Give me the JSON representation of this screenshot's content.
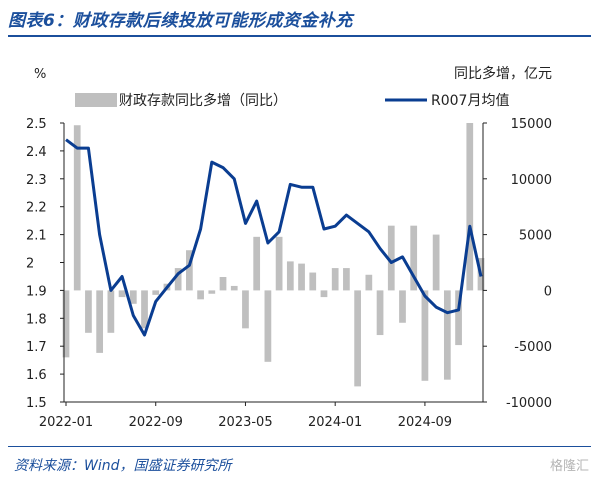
{
  "header": {
    "title": "图表6：财政存款后续投放可能形成资金补充"
  },
  "footer": {
    "source": "资料来源：Wind，国盛证券研究所",
    "watermark": "格隆汇"
  },
  "chart_data": {
    "type": "bar+line",
    "left_axis_unit": "%",
    "right_axis_unit": "同比多增，亿元",
    "left_ylim": [
      1.5,
      2.5
    ],
    "right_ylim": [
      -10000,
      15000
    ],
    "left_ticks": [
      "2.5",
      "2.4",
      "2.3",
      "2.2",
      "2.1",
      "2",
      "1.9",
      "1.8",
      "1.7",
      "1.6",
      "1.5"
    ],
    "right_ticks": [
      "15000",
      "10000",
      "5000",
      "0",
      "-5000",
      "-10000"
    ],
    "x_ticks": [
      "2022-01",
      "2022-09",
      "2023-05",
      "2024-01",
      "2024-09"
    ],
    "x_tick_index": [
      0,
      8,
      16,
      24,
      32
    ],
    "legend": "top",
    "series": [
      {
        "name": "财政存款同比多增（同比）",
        "kind": "bar",
        "axis": "right",
        "color": "#bfbfbf",
        "values": [
          -6000,
          14800,
          -3800,
          -5600,
          -3800,
          -600,
          -1200,
          -3400,
          -400,
          600,
          2000,
          3600,
          -800,
          -300,
          1200,
          400,
          -3400,
          4800,
          -6400,
          4800,
          2600,
          2400,
          1600,
          -600,
          2000,
          2000,
          -8600,
          1400,
          -4000,
          5800,
          -2900,
          5800,
          -8100,
          5000,
          -8000,
          -4900,
          15000,
          2900
        ]
      },
      {
        "name": "R007月均值",
        "kind": "line",
        "axis": "left",
        "color": "#0a3d91",
        "values": [
          2.44,
          2.41,
          2.41,
          2.1,
          1.9,
          1.95,
          1.81,
          1.74,
          1.86,
          1.91,
          1.96,
          1.99,
          2.12,
          2.36,
          2.34,
          2.3,
          2.14,
          2.22,
          2.07,
          2.11,
          2.28,
          2.27,
          2.27,
          2.12,
          2.13,
          2.17,
          2.14,
          2.11,
          2.05,
          2.0,
          2.02,
          1.95,
          1.88,
          1.84,
          1.82,
          1.83,
          2.13,
          1.95
        ]
      }
    ]
  }
}
